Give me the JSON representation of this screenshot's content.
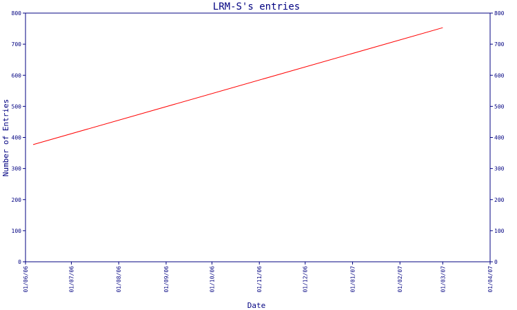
{
  "chart_data": {
    "type": "line",
    "title": "LRM-S's entries",
    "xlabel": "Date",
    "ylabel": "Number of Entries",
    "x_ticks": [
      "01/06/06",
      "01/07/06",
      "01/08/06",
      "01/09/06",
      "01/10/06",
      "01/11/06",
      "01/12/06",
      "01/01/07",
      "01/02/07",
      "01/03/07",
      "01/04/07"
    ],
    "ylim": [
      0,
      800
    ],
    "y_ticks": [
      0,
      100,
      200,
      300,
      400,
      500,
      600,
      700,
      800
    ],
    "y_ticks_right": [
      0,
      100,
      200,
      300,
      400,
      500,
      600,
      700,
      800
    ],
    "grid": false,
    "legend": "none",
    "series": [
      {
        "x": [
          "2006-06-06",
          "2007-03-01"
        ],
        "y": [
          377,
          753
        ]
      }
    ],
    "colors": {
      "axis": "#000080",
      "line": "#ff0000",
      "background": "#ffffff"
    }
  }
}
